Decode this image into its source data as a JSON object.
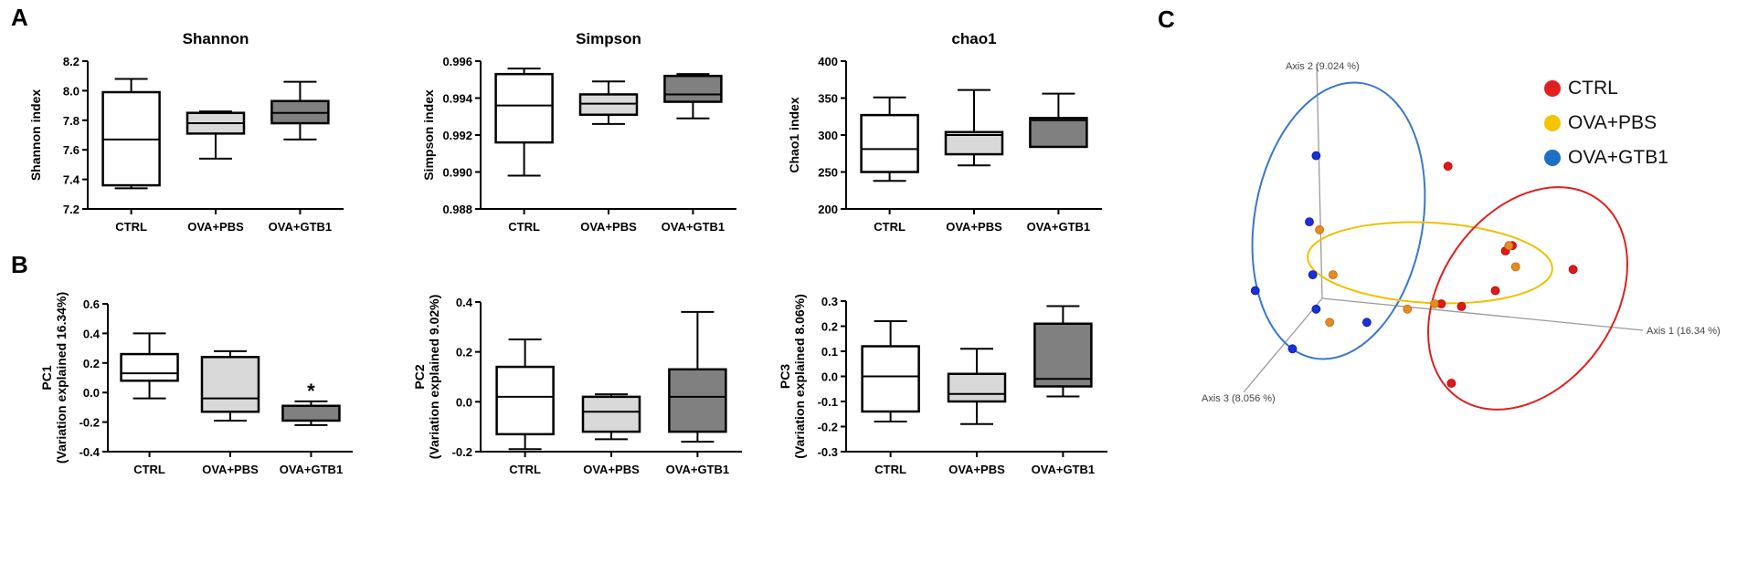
{
  "panel_labels": {
    "a": "A",
    "b": "B",
    "c": "C"
  },
  "colors": {
    "box_ctrl": "#ffffff",
    "box_pbs": "#d9d9d9",
    "box_gtb1": "#808080",
    "ctrl": "#e02020",
    "pbs": "#f5c400",
    "gtb1": "#1f6fc5",
    "ellipse_ctrl": "#e02020",
    "ellipse_pbs": "#f0c000",
    "ellipse_gtb1": "#3a78c9"
  },
  "chart_data": [
    {
      "id": "shannon",
      "type": "box",
      "title": "Shannon",
      "ylabel": "Shannon index",
      "ylabel2": "",
      "ylim": [
        7.2,
        8.2
      ],
      "yticks": [
        "8.2",
        "8.0",
        "7.8",
        "7.6",
        "7.4",
        "7.2"
      ],
      "ytick_values": [
        8.2,
        8.0,
        7.8,
        7.6,
        7.4,
        7.2
      ],
      "categories": [
        "CTRL",
        "OVA+PBS",
        "OVA+GTB1"
      ],
      "boxes": [
        {
          "min": 7.34,
          "q1": 7.36,
          "median": 7.67,
          "q3": 7.99,
          "max": 8.08
        },
        {
          "min": 7.54,
          "q1": 7.71,
          "median": 7.78,
          "q3": 7.85,
          "max": 7.86
        },
        {
          "min": 7.67,
          "q1": 7.78,
          "median": 7.85,
          "q3": 7.93,
          "max": 8.06
        }
      ],
      "annotations": []
    },
    {
      "id": "simpson",
      "type": "box",
      "title": "Simpson",
      "ylabel": "Simpson index",
      "ylabel2": "",
      "ylim": [
        0.988,
        0.996
      ],
      "yticks": [
        "0.996",
        "0.994",
        "0.992",
        "0.990",
        "0.988"
      ],
      "ytick_values": [
        0.996,
        0.994,
        0.992,
        0.99,
        0.988
      ],
      "categories": [
        "CTRL",
        "OVA+PBS",
        "OVA+GTB1"
      ],
      "boxes": [
        {
          "min": 0.9898,
          "q1": 0.9916,
          "median": 0.9936,
          "q3": 0.9953,
          "max": 0.9956
        },
        {
          "min": 0.9926,
          "q1": 0.9931,
          "median": 0.9937,
          "q3": 0.9942,
          "max": 0.9949
        },
        {
          "min": 0.9929,
          "q1": 0.9938,
          "median": 0.9942,
          "q3": 0.9952,
          "max": 0.9953
        }
      ],
      "annotations": []
    },
    {
      "id": "chao1",
      "type": "box",
      "title": "chao1",
      "ylabel": "Chao1 index",
      "ylabel2": "",
      "ylim": [
        200,
        400
      ],
      "yticks": [
        "400",
        "350",
        "300",
        "250",
        "200"
      ],
      "ytick_values": [
        400,
        350,
        300,
        250,
        200
      ],
      "categories": [
        "CTRL",
        "OVA+PBS",
        "OVA+GTB1"
      ],
      "boxes": [
        {
          "min": 238,
          "q1": 250,
          "median": 281,
          "q3": 327,
          "max": 351
        },
        {
          "min": 259,
          "q1": 274,
          "median": 300,
          "q3": 304,
          "max": 361
        },
        {
          "min": 284,
          "q1": 284,
          "median": 320,
          "q3": 323,
          "max": 356
        }
      ],
      "annotations": []
    },
    {
      "id": "pc1",
      "type": "box",
      "title": "",
      "ylabel": "PC1",
      "ylabel2": "(Variation explained 16.34%)",
      "ylim": [
        -0.4,
        0.6
      ],
      "yticks": [
        "0.6",
        "0.4",
        "0.2",
        "0.0",
        "-0.2",
        "-0.4"
      ],
      "ytick_values": [
        0.6,
        0.4,
        0.2,
        0.0,
        -0.2,
        -0.4
      ],
      "categories": [
        "CTRL",
        "OVA+PBS",
        "OVA+GTB1"
      ],
      "boxes": [
        {
          "min": -0.04,
          "q1": 0.08,
          "median": 0.13,
          "q3": 0.26,
          "max": 0.4
        },
        {
          "min": -0.19,
          "q1": -0.13,
          "median": -0.04,
          "q3": 0.24,
          "max": 0.28
        },
        {
          "min": -0.22,
          "q1": -0.19,
          "median": -0.19,
          "q3": -0.09,
          "max": -0.06
        }
      ],
      "annotations": [
        {
          "category": 2,
          "text": "*",
          "value": 0.0
        }
      ]
    },
    {
      "id": "pc2",
      "type": "box",
      "title": "",
      "ylabel": "PC2",
      "ylabel2": "(Variation explained 9.02%)",
      "ylim": [
        -0.2,
        0.4
      ],
      "yticks": [
        "0.4",
        "0.2",
        "0.0",
        "-0.2"
      ],
      "ytick_values": [
        0.4,
        0.2,
        0.0,
        -0.2
      ],
      "categories": [
        "CTRL",
        "OVA+PBS",
        "OVA+GTB1"
      ],
      "boxes": [
        {
          "min": -0.19,
          "q1": -0.13,
          "median": 0.02,
          "q3": 0.14,
          "max": 0.25
        },
        {
          "min": -0.15,
          "q1": -0.12,
          "median": -0.04,
          "q3": 0.02,
          "max": 0.03
        },
        {
          "min": -0.16,
          "q1": -0.12,
          "median": 0.02,
          "q3": 0.13,
          "max": 0.36
        }
      ],
      "annotations": []
    },
    {
      "id": "pc3",
      "type": "box",
      "title": "",
      "ylabel": "PC3",
      "ylabel2": "(Variation explained 8.06%)",
      "ylim": [
        -0.3,
        0.3
      ],
      "yticks": [
        "0.3",
        "0.2",
        "0.1",
        "0.0",
        "-0.1",
        "-0.2",
        "-0.3"
      ],
      "ytick_values": [
        0.3,
        0.2,
        0.1,
        0.0,
        -0.1,
        -0.2,
        -0.3
      ],
      "categories": [
        "CTRL",
        "OVA+PBS",
        "OVA+GTB1"
      ],
      "boxes": [
        {
          "min": -0.18,
          "q1": -0.14,
          "median": 0.0,
          "q3": 0.12,
          "max": 0.22
        },
        {
          "min": -0.19,
          "q1": -0.1,
          "median": -0.07,
          "q3": 0.01,
          "max": 0.11
        },
        {
          "min": -0.08,
          "q1": -0.04,
          "median": -0.01,
          "q3": 0.21,
          "max": 0.28
        }
      ],
      "annotations": []
    },
    {
      "id": "pcoa",
      "type": "scatter",
      "title": "",
      "axes": {
        "axis1": "Axis 1 (16.34 %)",
        "axis2": "Axis 2 (9.024 %)",
        "axis3": "Axis 3 (8.056 %)"
      },
      "legend": [
        {
          "label": "CTRL",
          "group": "ctrl"
        },
        {
          "label": "OVA+PBS",
          "group": "pbs"
        },
        {
          "label": "OVA+GTB1",
          "group": "gtb1"
        }
      ],
      "legend_position": "top-right",
      "points_note": "projected coordinates, 0-100 per axis direction",
      "points": {
        "ctrl": [
          [
            61,
            18
          ],
          [
            80,
            48
          ],
          [
            78,
            50
          ],
          [
            98,
            57
          ],
          [
            75,
            65
          ],
          [
            65,
            71
          ],
          [
            59,
            70
          ],
          [
            62,
            100
          ]
        ],
        "pbs": [
          [
            23,
            42
          ],
          [
            79,
            48
          ],
          [
            81,
            56
          ],
          [
            27,
            59
          ],
          [
            49,
            72
          ],
          [
            57,
            70
          ],
          [
            26,
            77
          ]
        ],
        "gtb1": [
          [
            22,
            14
          ],
          [
            20,
            39
          ],
          [
            21,
            59
          ],
          [
            4,
            65
          ],
          [
            22,
            72
          ],
          [
            37,
            77
          ],
          [
            15,
            87
          ]
        ]
      }
    }
  ]
}
